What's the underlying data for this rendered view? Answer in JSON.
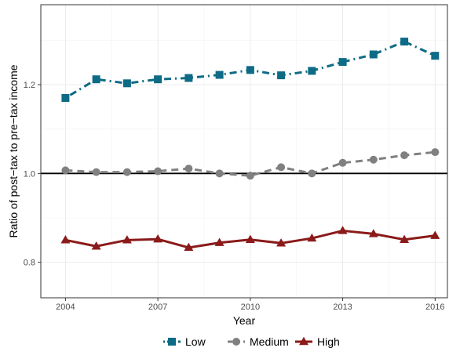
{
  "chart_data": {
    "type": "line",
    "xlabel": "Year",
    "ylabel": "Ratio of post−tax to pre−tax income",
    "xlim": [
      2003.2,
      2016.4
    ],
    "ylim": [
      0.72,
      1.38
    ],
    "x_ticks": [
      2004,
      2007,
      2010,
      2013,
      2016
    ],
    "x_tick_labels": [
      "2004",
      "2007",
      "2010",
      "2013",
      "2016"
    ],
    "y_ticks": [
      0.8,
      1.0,
      1.2
    ],
    "y_tick_labels": [
      "0.8",
      "1.0",
      "1.2"
    ],
    "reference_line": 1.0,
    "grid": true,
    "legend_position": "bottom",
    "x": [
      2004,
      2005,
      2006,
      2007,
      2008,
      2009,
      2010,
      2011,
      2012,
      2013,
      2014,
      2015,
      2016
    ],
    "series": [
      {
        "name": "Low",
        "color": "#0e6b85",
        "marker": "square",
        "dash": "dotdash",
        "values": [
          1.17,
          1.212,
          1.203,
          1.212,
          1.215,
          1.222,
          1.233,
          1.221,
          1.231,
          1.251,
          1.268,
          1.297,
          1.265
        ]
      },
      {
        "name": "Medium",
        "color": "#808080",
        "marker": "circle",
        "dash": "dashed",
        "values": [
          1.007,
          1.003,
          1.003,
          1.005,
          1.011,
          1.0,
          0.995,
          1.014,
          1.0,
          1.024,
          1.031,
          1.041,
          1.048
        ]
      },
      {
        "name": "High",
        "color": "#8b1a1a",
        "marker": "triangle",
        "dash": "solid",
        "values": [
          0.85,
          0.836,
          0.85,
          0.852,
          0.833,
          0.844,
          0.851,
          0.843,
          0.854,
          0.871,
          0.864,
          0.851,
          0.86
        ]
      }
    ]
  }
}
